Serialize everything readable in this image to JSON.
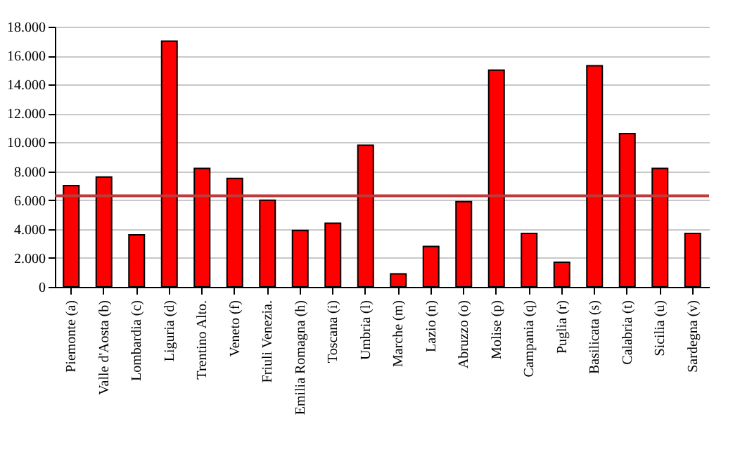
{
  "chart_data": {
    "type": "bar",
    "categories": [
      "Piemonte (a)",
      "Valle d'Aosta  (b)",
      "Lombardia (c)",
      "Liguria (d)",
      "Trentino Alto.",
      "Veneto (f)",
      "Friuli Venezia.",
      "Emilia Romagna (h)",
      "Toscana (i)",
      "Umbria (l)",
      "Marche (m)",
      "Lazio (n)",
      "Abruzzo (o)",
      "Molise (p)",
      "Campania  (q)",
      "Puglia (r)",
      "Basilicata (s)",
      "Calabria (t)",
      "Sicilia  (u)",
      "Sardegna (v)"
    ],
    "values": [
      7000,
      7600,
      3600,
      17000,
      8200,
      7500,
      6000,
      3900,
      4400,
      9800,
      900,
      2800,
      5900,
      15000,
      3700,
      1700,
      15300,
      10600,
      8200,
      3700
    ],
    "color": "#ff0000",
    "ylim": [
      0,
      18000
    ],
    "yticks": [
      0,
      {
        "value": 2000,
        "label": "2.000"
      },
      {
        "value": 4000,
        "label": "4.000"
      },
      {
        "value": 6000,
        "label": "6.000"
      },
      {
        "value": 8000,
        "label": "8.000"
      },
      {
        "value": 10000,
        "label": "10.000"
      },
      {
        "value": 12000,
        "label": "12.000"
      },
      {
        "value": 14000,
        "label": "14.000"
      },
      {
        "value": 16000,
        "label": "16.000"
      },
      {
        "value": 18000,
        "label": "18.000"
      }
    ],
    "grid": "y",
    "ref_lines": [
      {
        "axis": "y",
        "value": 6300,
        "color": "#c0393b"
      }
    ]
  }
}
